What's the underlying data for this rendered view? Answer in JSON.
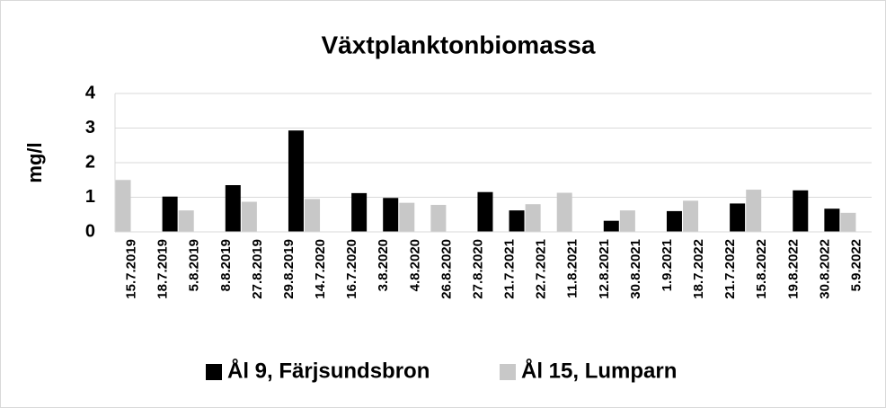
{
  "chart_data": {
    "type": "bar",
    "title": "Växtplanktonbiomassa",
    "y_label": "mg/l",
    "categories": [
      "15.7.2019",
      "18.7.2019",
      "5.8.2019",
      "8.8.2019",
      "27.8.2019",
      "29.8.2019",
      "14.7.2020",
      "16.7.2020",
      "3.8.2020",
      "4.8.2020",
      "26.8.2020",
      "27.8.2020",
      "21.7.2021",
      "22.7.2021",
      "11.8.2021",
      "12.8.2021",
      "30.8.2021",
      "1.9.2021",
      "18.7.2022",
      "21.7.2022",
      "15.8.2022",
      "19.8.2022",
      "30.8.2022",
      "5.9.2022"
    ],
    "series": [
      {
        "name": "Ål 9, Färjsundsbron",
        "color": "#000000",
        "values": [
          null,
          1.02,
          null,
          1.35,
          null,
          2.93,
          null,
          1.12,
          0.98,
          null,
          null,
          1.15,
          0.62,
          null,
          null,
          0.32,
          null,
          0.6,
          null,
          0.82,
          null,
          1.2,
          0.67,
          null
        ]
      },
      {
        "name": "Ål 15, Lumparn",
        "color": "#c8c8c8",
        "values": [
          1.5,
          null,
          0.62,
          null,
          0.87,
          null,
          0.95,
          null,
          null,
          0.84,
          0.78,
          null,
          null,
          0.8,
          1.13,
          null,
          0.62,
          null,
          0.9,
          null,
          1.22,
          null,
          null,
          0.55
        ]
      }
    ],
    "ylim": [
      0,
      4
    ],
    "yticks": [
      0,
      1,
      2,
      3,
      4
    ],
    "grid": true,
    "legend": "bottom"
  }
}
